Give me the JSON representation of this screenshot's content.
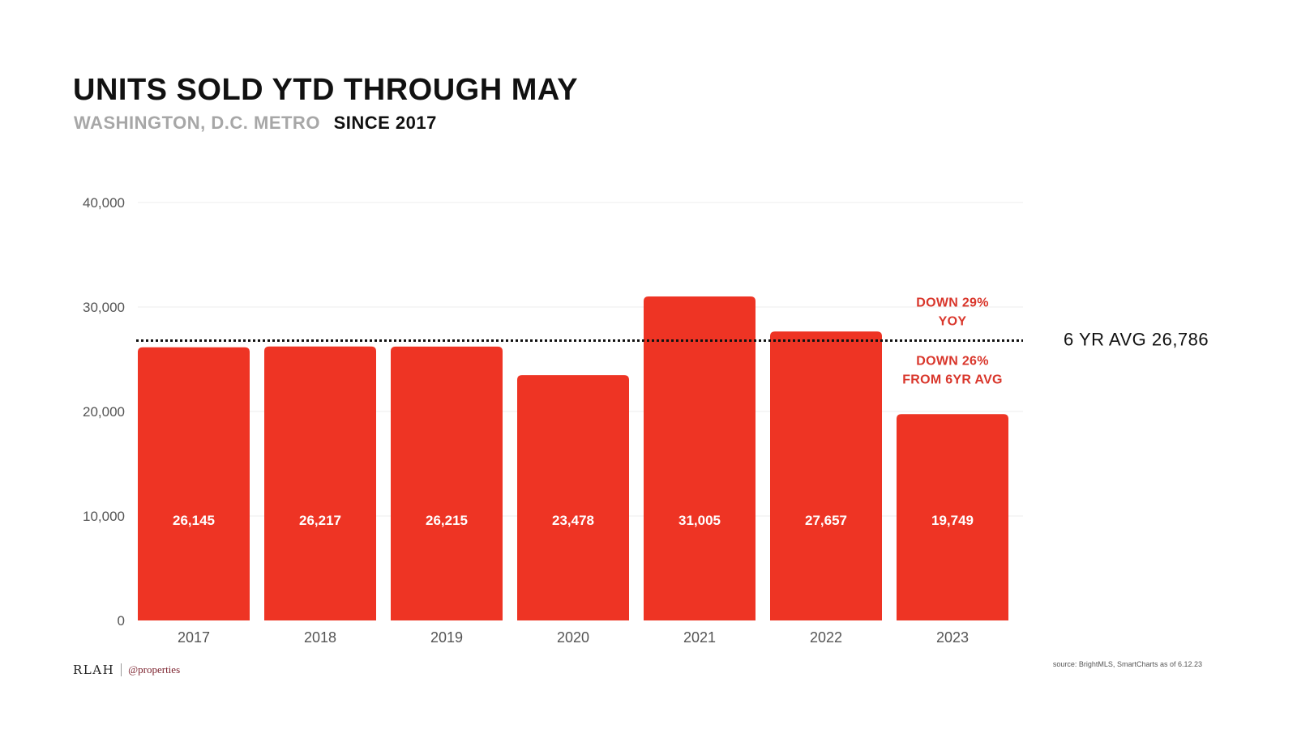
{
  "header": {
    "title": "UNITS SOLD YTD THROUGH MAY",
    "subtitle_location": "WASHINGTON, D.C. METRO",
    "subtitle_since": "SINCE 2017"
  },
  "chart_data": {
    "type": "bar",
    "title": "UNITS SOLD YTD THROUGH MAY",
    "subtitle": "WASHINGTON, D.C. METRO SINCE 2017",
    "categories": [
      "2017",
      "2018",
      "2019",
      "2020",
      "2021",
      "2022",
      "2023"
    ],
    "values": [
      26145,
      26217,
      26215,
      23478,
      31005,
      27657,
      19749
    ],
    "value_labels": [
      "26,145",
      "26,217",
      "26,215",
      "23,478",
      "31,005",
      "27,657",
      "19,749"
    ],
    "xlabel": "",
    "ylabel": "",
    "ylim": [
      0,
      40000
    ],
    "yticks": [
      0,
      10000,
      20000,
      30000,
      40000
    ],
    "ytick_labels": [
      "0",
      "10,000",
      "20,000",
      "30,000",
      "40,000"
    ],
    "grid": true,
    "reference_line": {
      "value": 26786,
      "label": "6 YR AVG 26,786",
      "style": "dotted"
    },
    "annotations": [
      {
        "lines": [
          "DOWN 29%",
          "YOY"
        ],
        "placement": "above-average-line"
      },
      {
        "lines": [
          "DOWN 26%",
          "FROM 6YR AVG"
        ],
        "placement": "below-average-line"
      }
    ]
  },
  "colors": {
    "bar": "#ee3424",
    "annotation": "#d9362b",
    "bar_label": "#ffffff",
    "axis_text": "#555555",
    "grid": "#ececec",
    "average_line": "#111111"
  },
  "footer": {
    "logo_text": "RLAH",
    "logo_partner": "@properties",
    "source": "source: BrightMLS, SmartCharts as of 6.12.23"
  }
}
